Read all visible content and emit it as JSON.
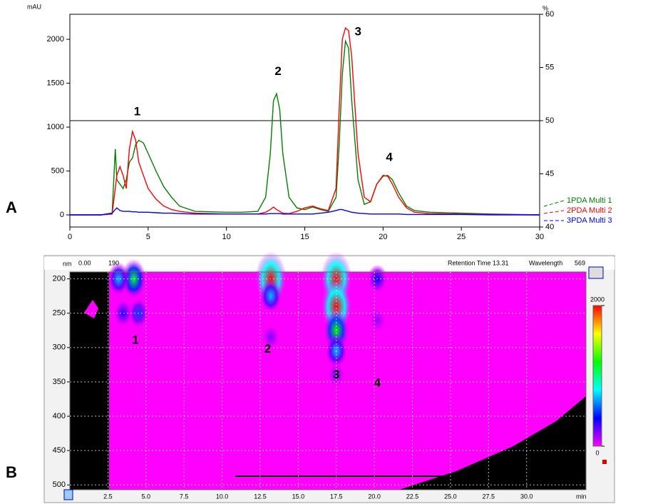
{
  "chart_data": [
    {
      "type": "line",
      "panel_label": "A",
      "y_label": "mAU",
      "y2_label": "%",
      "x": [
        0,
        2,
        2.7,
        2.9,
        3.0,
        3.2,
        3.4,
        3.6,
        3.8,
        4.0,
        4.2,
        4.4,
        4.7,
        5.0,
        5.5,
        6,
        6.5,
        7,
        8,
        10,
        11,
        12,
        12.5,
        12.8,
        13.0,
        13.2,
        13.4,
        13.6,
        14,
        14.5,
        15,
        15.5,
        16,
        16.5,
        17,
        17.2,
        17.4,
        17.6,
        17.8,
        18,
        18.4,
        18.8,
        19.2,
        19.6,
        20,
        20.3,
        20.6,
        21,
        21.5,
        22,
        23,
        25,
        27,
        30
      ],
      "series": [
        {
          "name": "1PDA Multi 1",
          "color": "#008000",
          "values": [
            0,
            0,
            20,
            750,
            400,
            350,
            300,
            400,
            600,
            650,
            800,
            850,
            820,
            700,
            500,
            320,
            200,
            100,
            40,
            30,
            30,
            40,
            200,
            700,
            1300,
            1380,
            1200,
            700,
            200,
            80,
            60,
            90,
            60,
            40,
            200,
            800,
            1600,
            1980,
            1900,
            1300,
            400,
            120,
            150,
            350,
            440,
            450,
            400,
            250,
            100,
            50,
            30,
            20,
            10,
            0
          ]
        },
        {
          "name": "2PDA Multi 2",
          "color": "#ff0000",
          "values": [
            0,
            0,
            10,
            300,
            450,
            550,
            450,
            300,
            750,
            950,
            850,
            600,
            450,
            300,
            180,
            100,
            60,
            40,
            20,
            10,
            10,
            10,
            30,
            60,
            90,
            60,
            40,
            20,
            15,
            40,
            80,
            100,
            70,
            50,
            300,
            1200,
            2000,
            2130,
            2100,
            1800,
            700,
            200,
            150,
            350,
            450,
            440,
            350,
            200,
            80,
            30,
            15,
            10,
            5,
            0
          ]
        },
        {
          "name": "3PDA Multi 3",
          "color": "#0000ff",
          "values": [
            0,
            0,
            20,
            60,
            80,
            50,
            40,
            40,
            40,
            35,
            35,
            30,
            30,
            30,
            25,
            20,
            20,
            15,
            10,
            10,
            10,
            10,
            10,
            15,
            15,
            15,
            15,
            10,
            10,
            10,
            10,
            10,
            20,
            30,
            50,
            60,
            60,
            50,
            40,
            30,
            20,
            15,
            10,
            10,
            10,
            10,
            10,
            10,
            5,
            5,
            5,
            5,
            0,
            0
          ]
        }
      ],
      "xlim": [
        0,
        30
      ],
      "xticks": [
        0,
        5,
        10,
        15,
        20,
        25,
        30
      ],
      "ylim": [
        -138,
        2285
      ],
      "yticks": [
        0,
        500,
        1000,
        1500,
        2000
      ],
      "y2lim": [
        40,
        60
      ],
      "y2ticks": [
        40,
        45,
        50,
        55,
        60
      ],
      "hlines": [
        {
          "value": 50,
          "axis": "y2",
          "color": "#000000"
        }
      ],
      "annotations": [
        {
          "text": "1",
          "x": 4.3,
          "y": 1170
        },
        {
          "text": "2",
          "x": 13.3,
          "y": 1630
        },
        {
          "text": "3",
          "x": 18.4,
          "y": 2080
        },
        {
          "text": "4",
          "x": 20.4,
          "y": 650
        }
      ],
      "legend": "right"
    },
    {
      "type": "heatmap",
      "panel_label": "B",
      "y_label": "nm",
      "x_label": "min",
      "status": [
        "0.00",
        "190",
        "Retention Time 13.31",
        "Wavelength",
        "569"
      ],
      "xlim": [
        0,
        33.9
      ],
      "xticks": [
        2.5,
        {
          "value": 5,
          "label": "5.0"
        },
        7.5,
        {
          "value": 10,
          "label": "10.0"
        },
        12.5,
        {
          "value": 15,
          "label": "15.0"
        },
        17.5,
        {
          "value": 20,
          "label": "20.0"
        },
        22.5,
        {
          "value": 25,
          "label": "25.0"
        },
        27.5,
        {
          "value": 30,
          "label": "30.0"
        }
      ],
      "ylim": [
        190,
        507
      ],
      "y_inverted": true,
      "yticks": [
        200,
        250,
        300,
        350,
        400,
        450,
        500
      ],
      "grid": true,
      "zlim": [
        0,
        2000
      ],
      "colorbar_ticks": [
        0,
        2000
      ],
      "colors": [
        "#ff00ff",
        "#0000ff",
        "#00ffff",
        "#00ff00",
        "#ffff00",
        "#ff0000"
      ],
      "spots": [
        {
          "x": 17.5,
          "y": 200,
          "z": 2000
        },
        {
          "x": 17.5,
          "y": 240,
          "z": 2000
        },
        {
          "x": 17.5,
          "y": 275,
          "z": 1200
        },
        {
          "x": 17.5,
          "y": 305,
          "z": 700
        },
        {
          "x": 17.5,
          "y": 340,
          "z": 200
        },
        {
          "x": 13.2,
          "y": 200,
          "z": 2000
        },
        {
          "x": 13.2,
          "y": 225,
          "z": 700
        },
        {
          "x": 13.2,
          "y": 285,
          "z": 200
        },
        {
          "x": 4.2,
          "y": 200,
          "z": 1100
        },
        {
          "x": 3.2,
          "y": 200,
          "z": 700
        },
        {
          "x": 4.5,
          "y": 250,
          "z": 500
        },
        {
          "x": 3.5,
          "y": 250,
          "z": 350
        },
        {
          "x": 20.2,
          "y": 200,
          "z": 400
        },
        {
          "x": 20.2,
          "y": 260,
          "z": 150
        }
      ],
      "annotations": [
        {
          "text": "1",
          "x": 4.3,
          "y": 290
        },
        {
          "text": "2",
          "x": 13.0,
          "y": 303
        },
        {
          "text": "3",
          "x": 17.5,
          "y": 340
        },
        {
          "text": "4",
          "x": 20.2,
          "y": 352
        }
      ]
    }
  ]
}
